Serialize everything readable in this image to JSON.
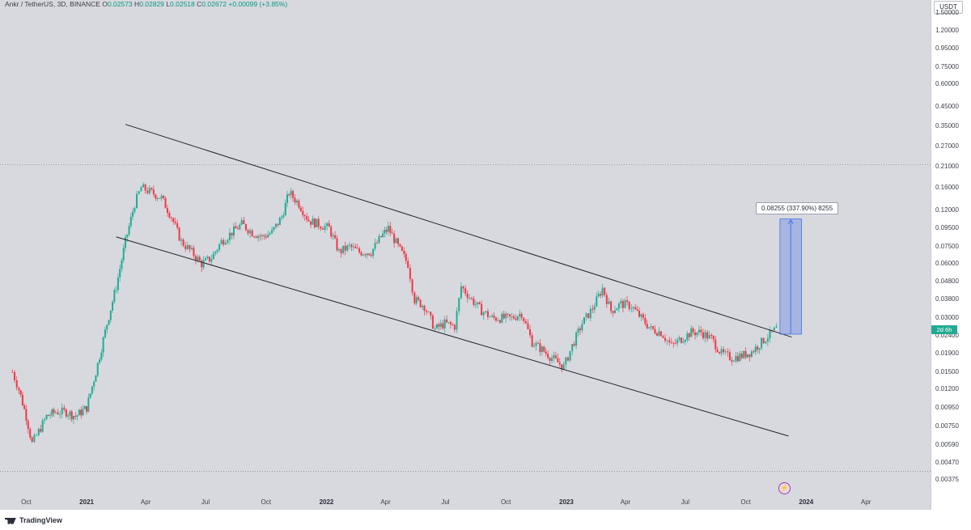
{
  "header": {
    "symbol": "Ankr / TetherUS, 3D, BINANCE",
    "open_label": "O",
    "open": "0.02573",
    "high_label": "H",
    "high": "0.02829",
    "low_label": "L",
    "low": "0.02518",
    "close_label": "C",
    "close": "0.02672",
    "change": "+0.00099 (+3.85%)"
  },
  "currency": "USDT",
  "current_price_badge": "2d 6h",
  "measure_label": "0.08255 (337.90%) 8255",
  "footer": {
    "brand": "TradingView"
  },
  "colors": {
    "up": "#22ab94",
    "down": "#f23645",
    "background": "#d7d9de",
    "measure": "#4a72e8"
  },
  "chart_data": {
    "type": "candlestick",
    "title": "Ankr / TetherUS, 3D, BINANCE",
    "y_scale": "log",
    "ylim": [
      0.0035,
      1.6
    ],
    "y_ticks": [
      "1.50000",
      "1.20000",
      "0.95000",
      "0.75000",
      "0.60000",
      "0.45000",
      "0.35000",
      "0.27000",
      "0.21000",
      "0.16000",
      "0.12000",
      "0.09500",
      "0.07500",
      "0.06000",
      "0.04800",
      "0.03800",
      "0.03000",
      "0.02400",
      "0.01900",
      "0.01500",
      "0.01200",
      "0.00950",
      "0.00750",
      "0.00590",
      "0.00470",
      "0.00375"
    ],
    "x_ticks": [
      "Oct",
      "2021",
      "Apr",
      "Jul",
      "Oct",
      "2022",
      "Apr",
      "Jul",
      "Oct",
      "2023",
      "Apr",
      "Jul",
      "Oct",
      "2024",
      "Apr"
    ],
    "x_tick_major": [
      "2021",
      "2022",
      "2023",
      "2024"
    ],
    "x_range": [
      "2020-09-01",
      "2024-05-20"
    ],
    "series": [
      {
        "name": "price",
        "points": [
          [
            "2020-09-10",
            0.015
          ],
          [
            "2020-09-20",
            0.012
          ],
          [
            "2020-10-01",
            0.0085
          ],
          [
            "2020-10-10",
            0.006
          ],
          [
            "2020-10-20",
            0.007
          ],
          [
            "2020-11-01",
            0.0085
          ],
          [
            "2020-11-15",
            0.009
          ],
          [
            "2020-12-01",
            0.009
          ],
          [
            "2020-12-15",
            0.0085
          ],
          [
            "2021-01-01",
            0.0095
          ],
          [
            "2021-01-15",
            0.015
          ],
          [
            "2021-02-01",
            0.028
          ],
          [
            "2021-02-15",
            0.045
          ],
          [
            "2021-03-01",
            0.08
          ],
          [
            "2021-03-15",
            0.13
          ],
          [
            "2021-03-25",
            0.16
          ],
          [
            "2021-04-10",
            0.15
          ],
          [
            "2021-04-25",
            0.14
          ],
          [
            "2021-05-10",
            0.11
          ],
          [
            "2021-05-25",
            0.08
          ],
          [
            "2021-06-10",
            0.07
          ],
          [
            "2021-06-25",
            0.06
          ],
          [
            "2021-07-10",
            0.065
          ],
          [
            "2021-07-25",
            0.08
          ],
          [
            "2021-08-10",
            0.09
          ],
          [
            "2021-08-25",
            0.1
          ],
          [
            "2021-09-10",
            0.09
          ],
          [
            "2021-09-25",
            0.085
          ],
          [
            "2021-10-10",
            0.09
          ],
          [
            "2021-10-25",
            0.11
          ],
          [
            "2021-11-05",
            0.15
          ],
          [
            "2021-11-20",
            0.13
          ],
          [
            "2021-12-05",
            0.105
          ],
          [
            "2021-12-20",
            0.1
          ],
          [
            "2022-01-05",
            0.095
          ],
          [
            "2022-01-20",
            0.07
          ],
          [
            "2022-02-05",
            0.075
          ],
          [
            "2022-02-20",
            0.07
          ],
          [
            "2022-03-10",
            0.07
          ],
          [
            "2022-03-25",
            0.085
          ],
          [
            "2022-04-05",
            0.095
          ],
          [
            "2022-04-20",
            0.075
          ],
          [
            "2022-05-05",
            0.06
          ],
          [
            "2022-05-15",
            0.038
          ],
          [
            "2022-05-30",
            0.035
          ],
          [
            "2022-06-15",
            0.026
          ],
          [
            "2022-06-30",
            0.028
          ],
          [
            "2022-07-15",
            0.027
          ],
          [
            "2022-07-25",
            0.045
          ],
          [
            "2022-08-10",
            0.038
          ],
          [
            "2022-08-25",
            0.033
          ],
          [
            "2022-09-10",
            0.03
          ],
          [
            "2022-09-25",
            0.03
          ],
          [
            "2022-10-10",
            0.03
          ],
          [
            "2022-10-25",
            0.032
          ],
          [
            "2022-11-10",
            0.022
          ],
          [
            "2022-11-25",
            0.02
          ],
          [
            "2022-12-10",
            0.018
          ],
          [
            "2022-12-28",
            0.016
          ],
          [
            "2023-01-10",
            0.021
          ],
          [
            "2023-01-25",
            0.028
          ],
          [
            "2023-02-10",
            0.034
          ],
          [
            "2023-02-25",
            0.044
          ],
          [
            "2023-03-10",
            0.033
          ],
          [
            "2023-03-25",
            0.036
          ],
          [
            "2023-04-10",
            0.035
          ],
          [
            "2023-04-25",
            0.03
          ],
          [
            "2023-05-10",
            0.026
          ],
          [
            "2023-05-25",
            0.025
          ],
          [
            "2023-06-10",
            0.021
          ],
          [
            "2023-06-25",
            0.023
          ],
          [
            "2023-07-10",
            0.025
          ],
          [
            "2023-07-25",
            0.025
          ],
          [
            "2023-08-10",
            0.023
          ],
          [
            "2023-08-25",
            0.019
          ],
          [
            "2023-09-10",
            0.018
          ],
          [
            "2023-09-25",
            0.0185
          ],
          [
            "2023-10-10",
            0.0195
          ],
          [
            "2023-10-25",
            0.022
          ],
          [
            "2023-11-10",
            0.025
          ],
          [
            "2023-11-20",
            0.0267
          ]
        ]
      }
    ],
    "trendlines": [
      {
        "name": "channel-upper",
        "from": [
          "2021-03-01",
          0.36
        ],
        "to": [
          "2023-12-10",
          0.0235
        ]
      },
      {
        "name": "channel-lower",
        "from": [
          "2021-02-15",
          0.085
        ],
        "to": [
          "2023-12-05",
          0.0066
        ]
      }
    ],
    "reference_lines": [
      0.215,
      0.0042
    ],
    "measure": {
      "from_price": 0.0244,
      "to_price": 0.10695,
      "start": "2023-11-22",
      "end": "2023-12-25",
      "text": "0.08255 (337.90%) 8255"
    }
  }
}
